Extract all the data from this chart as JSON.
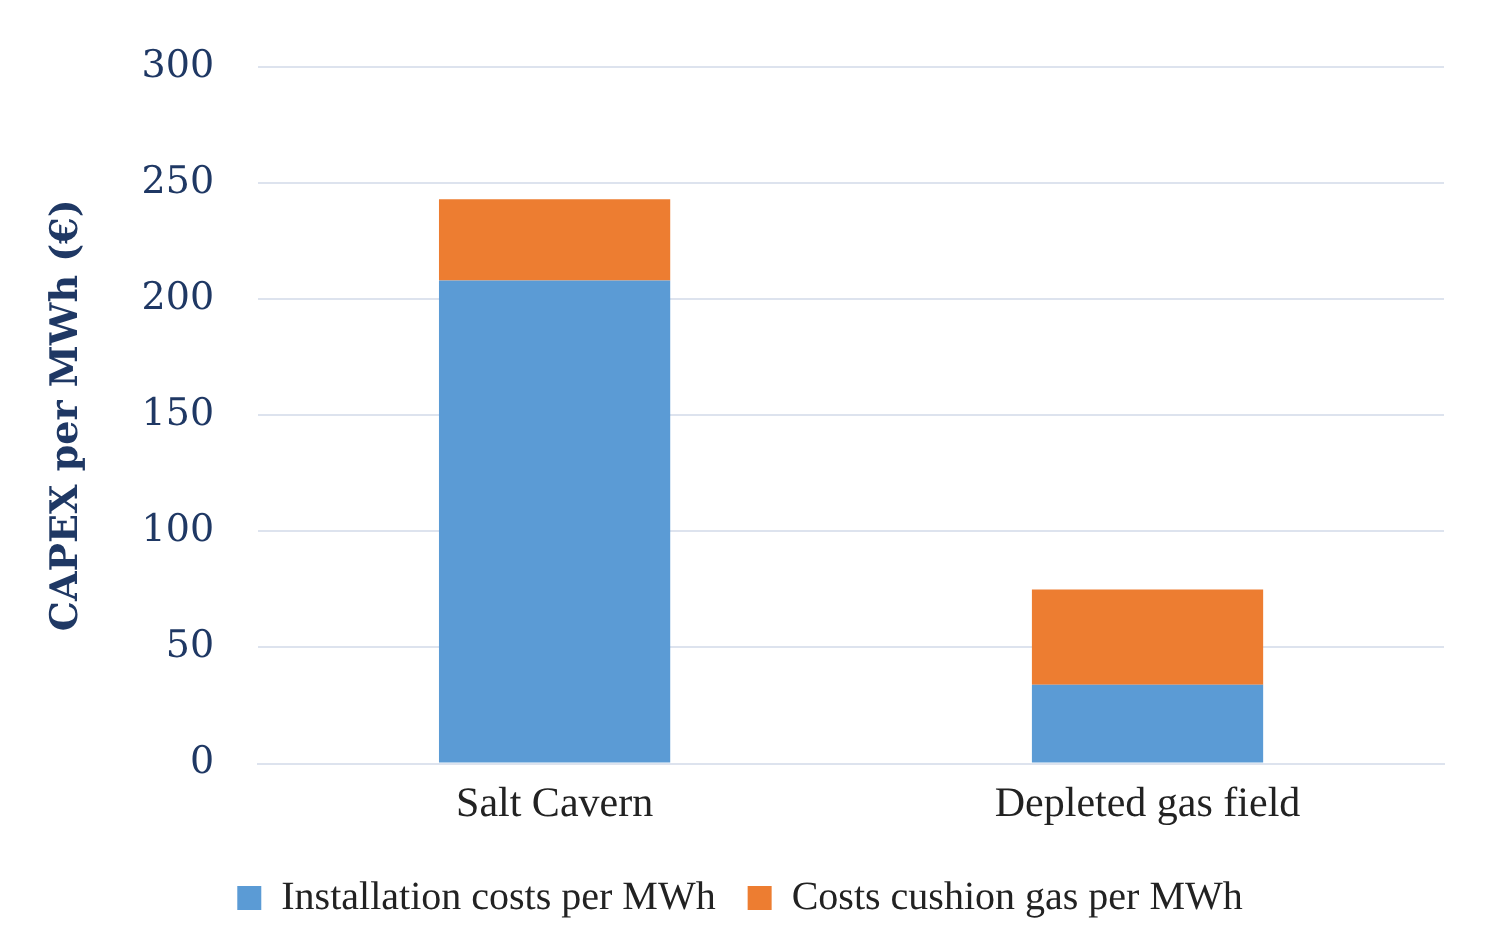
{
  "chart_data": {
    "type": "bar",
    "ylabel": "CAPEX per MWh (€)",
    "categories": [
      "Salt Cavern",
      "Depleted gas field"
    ],
    "stacked": true,
    "series": [
      {
        "name": "Installation costs per MWh",
        "color": "#5b9bd5",
        "values": [
          208,
          34
        ]
      },
      {
        "name": "Costs cushion gas per MWh",
        "color": "#ed7d31",
        "values": [
          35,
          41
        ]
      }
    ],
    "ylim": [
      0,
      300
    ],
    "yticks": [
      0,
      50,
      100,
      150,
      200,
      250,
      300
    ],
    "grid": "y",
    "legend": "bottom"
  }
}
